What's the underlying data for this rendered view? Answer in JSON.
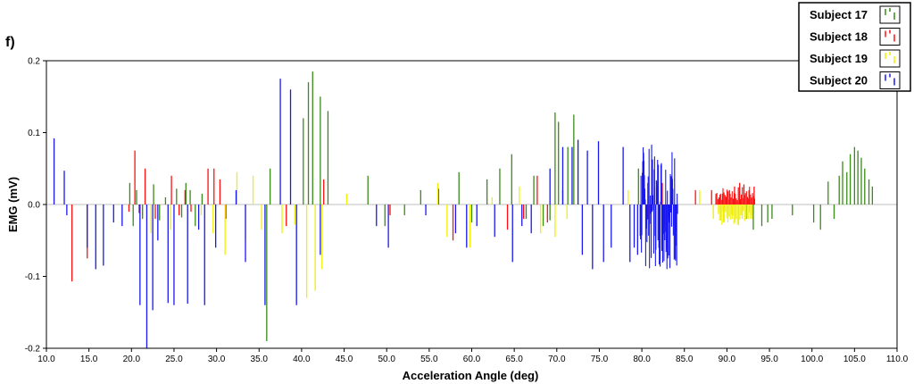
{
  "panel_label": "f)",
  "chart_data": {
    "type": "bar",
    "xlabel": "Acceleration Angle (deg)",
    "ylabel": "EMG (mV)",
    "xlim": [
      10.0,
      110.0
    ],
    "ylim": [
      -0.2,
      0.2
    ],
    "x_ticks": [
      10.0,
      15.0,
      20.0,
      25.0,
      30.0,
      35.0,
      40.0,
      45.0,
      50.0,
      55.0,
      60.0,
      65.0,
      70.0,
      75.0,
      80.0,
      85.0,
      90.0,
      95.0,
      100.0,
      105.0,
      110.0
    ],
    "x_tick_labels": [
      "10.0",
      "15.0",
      "20.0",
      "25.0",
      "30.0",
      "35.0",
      "40.0",
      "45.0",
      "50.0",
      "55.0",
      "60.0",
      "65.0",
      "70.0",
      "75.0",
      "80.0",
      "85.0",
      "90.0",
      "95.0",
      "100.0",
      "105.0",
      "110.0"
    ],
    "y_ticks": [
      0.2,
      0.1,
      0.0,
      -0.1,
      -0.2
    ],
    "y_tick_labels": [
      "0.2",
      "0.1",
      "0.0",
      "-0.1",
      "-0.2"
    ],
    "grid": false,
    "legend_position": "top-right",
    "series": [
      {
        "name": "Subject 17",
        "color": "#3a8a1a",
        "x": [
          19.8,
          20.2,
          20.6,
          21.3,
          22.6,
          23.3,
          24.0,
          25.3,
          25.9,
          26.4,
          26.9,
          27.5,
          28.3,
          35.9,
          36.3,
          40.2,
          40.8,
          41.3,
          42.2,
          43.1,
          47.8,
          49.8,
          52.1,
          54.0,
          58.5,
          60.0,
          61.8,
          63.3,
          64.7,
          66.4,
          67.3,
          68.4,
          69.2,
          69.8,
          70.2,
          71.3,
          72.0,
          79.6,
          80.2,
          92.3,
          93.1,
          94.1,
          94.8,
          95.3,
          97.7,
          100.2,
          101.0,
          101.9,
          102.6,
          103.2,
          103.6,
          104.1,
          104.5,
          105.0,
          105.4,
          105.8,
          106.2,
          106.7,
          107.1
        ],
        "values": [
          0.03,
          -0.03,
          0.02,
          -0.02,
          0.028,
          -0.022,
          0.01,
          0.022,
          -0.018,
          0.03,
          0.02,
          -0.03,
          0.015,
          -0.19,
          0.05,
          0.12,
          0.17,
          0.185,
          0.15,
          0.13,
          0.04,
          -0.03,
          -0.015,
          0.02,
          0.045,
          -0.025,
          0.035,
          0.05,
          0.07,
          -0.02,
          0.04,
          -0.03,
          -0.022,
          0.128,
          0.115,
          0.08,
          0.125,
          0.05,
          0.07,
          -0.02,
          -0.035,
          -0.03,
          -0.025,
          -0.02,
          -0.015,
          -0.025,
          -0.035,
          0.032,
          -0.02,
          0.04,
          0.06,
          0.045,
          0.07,
          0.08,
          0.075,
          0.065,
          0.05,
          0.035,
          0.025
        ]
      },
      {
        "name": "Subject 18",
        "color": "#ff1010",
        "x": [
          13.0,
          14.8,
          19.7,
          20.4,
          20.9,
          21.6,
          22.8,
          24.7,
          25.6,
          26.3,
          27.0,
          29.0,
          29.7,
          30.4,
          31.1,
          38.2,
          42.6,
          50.4,
          56.1,
          57.8,
          64.2,
          66.1,
          67.7,
          68.9,
          70.7,
          80.7,
          81.5,
          82.4,
          83.2,
          86.3,
          88.2,
          89.5,
          90.3,
          90.9,
          91.5,
          92.0,
          92.6,
          93.2
        ],
        "values": [
          -0.107,
          -0.075,
          -0.01,
          0.075,
          -0.012,
          0.05,
          -0.02,
          0.04,
          -0.015,
          0.02,
          -0.01,
          0.05,
          0.05,
          0.035,
          -0.02,
          -0.03,
          0.035,
          -0.015,
          0.022,
          -0.05,
          -0.035,
          -0.02,
          0.04,
          -0.025,
          0.02,
          -0.02,
          0.025,
          0.03,
          -0.025,
          0.02,
          0.02,
          0.015,
          0.02,
          0.025,
          0.03,
          0.028,
          0.02,
          0.025
        ],
        "dense": [
          {
            "from": 88.7,
            "to": 93.3,
            "step": 0.12,
            "lo": 0.005,
            "hi": 0.025
          }
        ]
      },
      {
        "name": "Subject 19",
        "color": "#f0f000",
        "x": [
          22.3,
          24.6,
          26.6,
          28.2,
          29.6,
          31.0,
          32.4,
          33.4,
          34.3,
          35.3,
          37.7,
          39.2,
          40.6,
          41.6,
          42.4,
          45.3,
          56.0,
          57.1,
          59.8,
          62.4,
          65.6,
          68.1,
          69.8,
          71.2,
          78.4,
          86.8,
          88.4,
          89.6,
          90.6,
          91.8,
          92.9
        ],
        "values": [
          -0.04,
          -0.035,
          -0.05,
          -0.015,
          -0.04,
          -0.07,
          0.045,
          -0.05,
          0.04,
          -0.035,
          -0.04,
          -0.028,
          -0.13,
          -0.12,
          -0.09,
          0.015,
          0.03,
          -0.045,
          -0.06,
          0.01,
          0.025,
          -0.04,
          -0.045,
          -0.02,
          0.02,
          0.02,
          -0.02,
          -0.025,
          -0.02,
          -0.02,
          -0.015
        ],
        "dense": [
          {
            "from": 89.0,
            "to": 93.0,
            "step": 0.14,
            "lo": -0.03,
            "hi": -0.008
          }
        ]
      },
      {
        "name": "Subject 20",
        "color": "#1818ee",
        "x": [
          10.9,
          12.1,
          12.4,
          14.8,
          15.8,
          16.7,
          17.9,
          18.9,
          21.0,
          21.8,
          22.5,
          23.1,
          24.3,
          25.0,
          26.6,
          27.9,
          28.6,
          29.9,
          32.3,
          33.4,
          35.7,
          37.5,
          38.7,
          39.4,
          42.2,
          48.8,
          50.2,
          54.6,
          58.1,
          59.4,
          60.6,
          62.7,
          64.8,
          65.9,
          67.0,
          69.2,
          70.7,
          71.8,
          72.5,
          73.0,
          73.6,
          74.2,
          74.9,
          75.5,
          76.4,
          77.8,
          78.6,
          79.1,
          79.5
        ],
        "values": [
          0.092,
          0.047,
          -0.015,
          -0.06,
          -0.09,
          -0.085,
          -0.025,
          -0.03,
          -0.14,
          -0.2,
          -0.147,
          -0.05,
          -0.137,
          -0.14,
          -0.138,
          -0.035,
          -0.14,
          -0.06,
          0.02,
          -0.08,
          -0.14,
          0.175,
          0.16,
          -0.14,
          -0.07,
          -0.03,
          -0.06,
          -0.015,
          -0.04,
          -0.06,
          -0.03,
          -0.045,
          -0.08,
          -0.03,
          -0.04,
          0.05,
          0.08,
          0.08,
          0.09,
          -0.07,
          0.075,
          -0.09,
          0.088,
          -0.08,
          -0.06,
          0.08,
          -0.08,
          -0.06,
          -0.07
        ],
        "dense": [
          {
            "from": 79.8,
            "to": 84.2,
            "step": 0.05,
            "lo": -0.09,
            "hi": 0.085
          }
        ]
      }
    ]
  }
}
